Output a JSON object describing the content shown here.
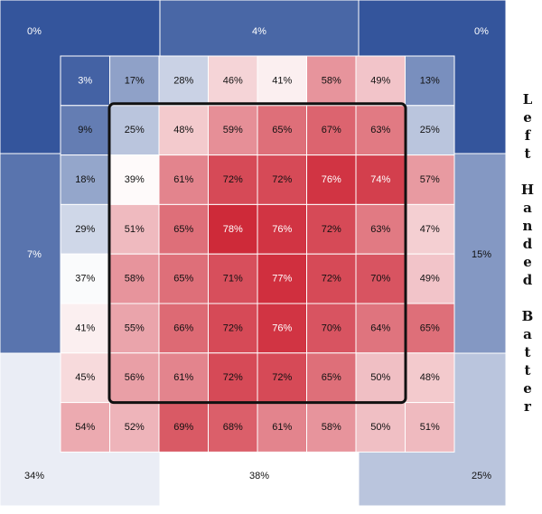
{
  "chart_data": {
    "type": "heatmap",
    "title": "",
    "xlabel": "",
    "ylabel": "Left Handed Batter",
    "unit": "%",
    "grid": true,
    "legend": "none",
    "colors": {
      "low": "#34559c",
      "mid": "#ffffff",
      "high": "#cc1f2f",
      "border": "#ffffff",
      "strike_zone": "#111111"
    },
    "inner_grid": [
      [
        3,
        17,
        28,
        46,
        41,
        58,
        49,
        13
      ],
      [
        9,
        25,
        48,
        59,
        65,
        67,
        63,
        25
      ],
      [
        18,
        39,
        61,
        72,
        72,
        76,
        74,
        57
      ],
      [
        29,
        51,
        65,
        78,
        76,
        72,
        63,
        47
      ],
      [
        37,
        58,
        65,
        71,
        77,
        72,
        70,
        49
      ],
      [
        41,
        55,
        66,
        72,
        76,
        70,
        64,
        65
      ],
      [
        45,
        56,
        61,
        72,
        72,
        65,
        50,
        48
      ],
      [
        54,
        52,
        69,
        68,
        61,
        58,
        50,
        51
      ]
    ],
    "outer_zones": {
      "top_left": 0,
      "top_center": 4,
      "top_right": 0,
      "mid_left": 7,
      "mid_right": 15,
      "bottom_left": 34,
      "bottom_center": 38,
      "bottom_right": 25
    }
  }
}
